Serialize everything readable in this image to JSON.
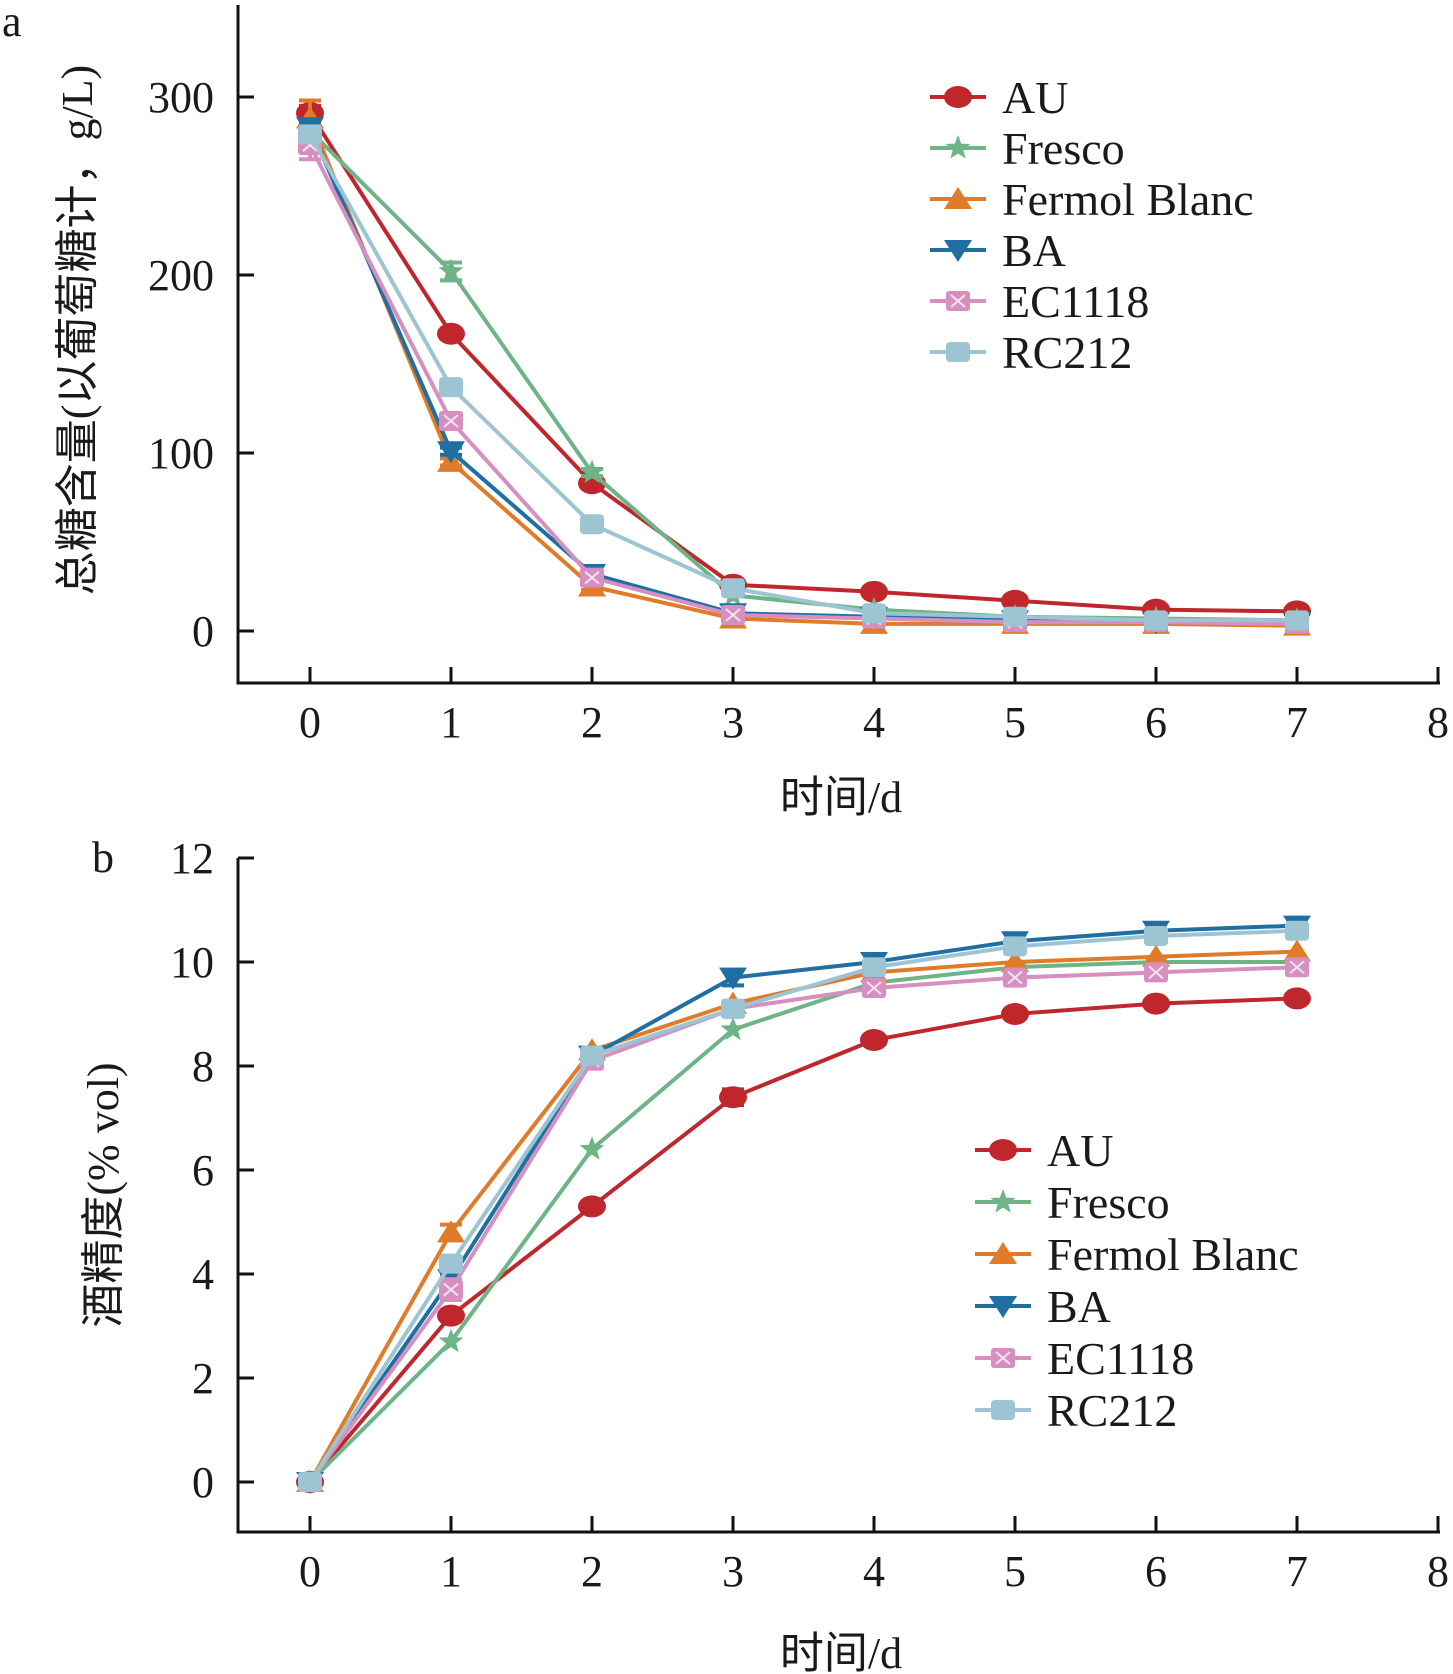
{
  "chart_data": [
    {
      "type": "line",
      "panel_label": "a",
      "title": "",
      "xlabel": "时间/d",
      "ylabel": "总糖含量(以葡萄糖计，g/L)",
      "xlim": [
        -0.5,
        8
      ],
      "ylim": [
        -30,
        350
      ],
      "x_ticks": [
        0,
        1,
        2,
        3,
        4,
        5,
        6,
        7,
        8
      ],
      "y_ticks": [
        0,
        100,
        200,
        300
      ],
      "grid": false,
      "legend_position": "top-right",
      "x": [
        0,
        1,
        2,
        3,
        4,
        5,
        6,
        7
      ],
      "series": [
        {
          "name": "AU",
          "color": "#c0272d",
          "marker": "circle",
          "values": [
            291,
            167,
            83,
            26,
            22,
            17,
            12,
            11
          ],
          "errors": [
            4,
            2,
            2,
            1,
            1,
            1,
            1,
            1
          ]
        },
        {
          "name": "Fresco",
          "color": "#6db486",
          "marker": "star",
          "values": [
            281,
            202,
            89,
            20,
            12,
            8,
            7,
            6
          ],
          "errors": [
            3,
            5,
            2,
            1,
            1,
            1,
            1,
            1
          ]
        },
        {
          "name": "Fermol Blanc",
          "color": "#e07b2a",
          "marker": "triangle-up",
          "values": [
            288,
            95,
            25,
            7,
            4,
            4,
            4,
            3
          ],
          "errors": [
            10,
            2,
            2,
            1,
            1,
            1,
            1,
            1
          ]
        },
        {
          "name": "BA",
          "color": "#1f6fa3",
          "marker": "triangle-down",
          "values": [
            283,
            101,
            32,
            10,
            8,
            6,
            5,
            5
          ],
          "errors": [
            3,
            2,
            2,
            1,
            1,
            1,
            1,
            1
          ]
        },
        {
          "name": "EC1118",
          "color": "#d78fc0",
          "marker": "square-x",
          "values": [
            273,
            118,
            30,
            9,
            7,
            5,
            5,
            4
          ],
          "errors": [
            8,
            3,
            2,
            1,
            1,
            1,
            1,
            1
          ]
        },
        {
          "name": "RC212",
          "color": "#9cc4d2",
          "marker": "square",
          "values": [
            279,
            137,
            60,
            24,
            10,
            8,
            6,
            6
          ],
          "errors": [
            3,
            3,
            2,
            1,
            1,
            1,
            1,
            1
          ]
        }
      ]
    },
    {
      "type": "line",
      "panel_label": "b",
      "title": "",
      "xlabel": "时间/d",
      "ylabel": "酒精度(% vol)",
      "xlim": [
        -0.5,
        8
      ],
      "ylim": [
        -1,
        12
      ],
      "x_ticks": [
        0,
        1,
        2,
        3,
        4,
        5,
        6,
        7,
        8
      ],
      "y_ticks": [
        0,
        2,
        4,
        6,
        8,
        10,
        12
      ],
      "grid": false,
      "legend_position": "bottom-right",
      "x": [
        0,
        1,
        2,
        3,
        4,
        5,
        6,
        7
      ],
      "series": [
        {
          "name": "AU",
          "color": "#c0272d",
          "marker": "circle",
          "values": [
            0,
            3.2,
            5.3,
            7.4,
            8.5,
            9.0,
            9.2,
            9.3
          ],
          "errors": [
            0.05,
            0.1,
            0.05,
            0.15,
            0.05,
            0.05,
            0.05,
            0.05
          ]
        },
        {
          "name": "Fresco",
          "color": "#6db486",
          "marker": "star",
          "values": [
            0,
            2.7,
            6.4,
            8.7,
            9.6,
            9.9,
            10.0,
            10.0
          ],
          "errors": [
            0.05,
            0.05,
            0.05,
            0.05,
            0.05,
            0.05,
            0.05,
            0.05
          ]
        },
        {
          "name": "Fermol Blanc",
          "color": "#e07b2a",
          "marker": "triangle-up",
          "values": [
            0,
            4.8,
            8.3,
            9.2,
            9.8,
            10.0,
            10.1,
            10.2
          ],
          "errors": [
            0.05,
            0.15,
            0.05,
            0.05,
            0.05,
            0.05,
            0.05,
            0.05
          ]
        },
        {
          "name": "BA",
          "color": "#1f6fa3",
          "marker": "triangle-down",
          "values": [
            0,
            3.9,
            8.2,
            9.7,
            10.0,
            10.4,
            10.6,
            10.7
          ],
          "errors": [
            0.05,
            0.1,
            0.05,
            0.15,
            0.05,
            0.05,
            0.05,
            0.05
          ]
        },
        {
          "name": "EC1118",
          "color": "#d78fc0",
          "marker": "square-x",
          "values": [
            0,
            3.7,
            8.1,
            9.1,
            9.5,
            9.7,
            9.8,
            9.9
          ],
          "errors": [
            0.05,
            0.2,
            0.05,
            0.05,
            0.05,
            0.05,
            0.05,
            0.05
          ]
        },
        {
          "name": "RC212",
          "color": "#9cc4d2",
          "marker": "square",
          "values": [
            0,
            4.2,
            8.2,
            9.1,
            9.9,
            10.3,
            10.5,
            10.6
          ],
          "errors": [
            0.05,
            0.1,
            0.05,
            0.05,
            0.05,
            0.05,
            0.05,
            0.05
          ]
        }
      ]
    }
  ]
}
